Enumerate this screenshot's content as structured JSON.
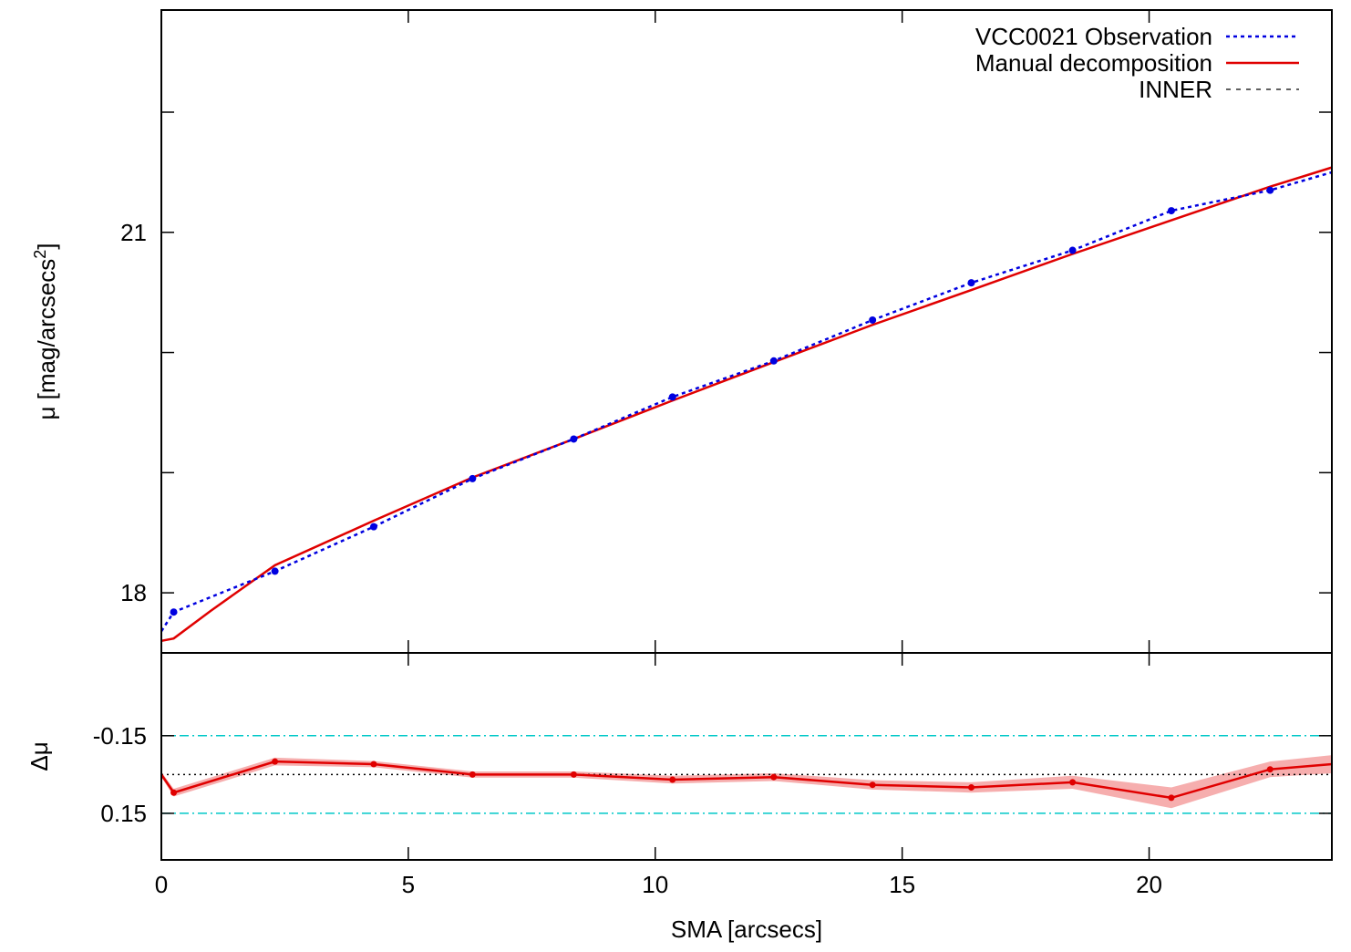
{
  "chart_data": [
    {
      "type": "line",
      "panel": "profile",
      "ylabel": "μ [mag/arcsecs",
      "ylabel_superscript": "2",
      "ylabel_close": "]",
      "xlim": [
        0,
        23.7
      ],
      "ylim": [
        22.85,
        17.5
      ],
      "y_reversed": true,
      "y_ticks": [
        18,
        19,
        20,
        21,
        22
      ],
      "y_tick_labels": [
        "18",
        "",
        "",
        "21",
        ""
      ],
      "legend_position": "top-right",
      "series": [
        {
          "name": "VCC0021 Observation",
          "style": "dotted-with-points",
          "color": "#0000e0",
          "x": [
            0.0,
            0.25,
            2.3,
            4.3,
            6.3,
            8.35,
            10.35,
            12.4,
            14.4,
            16.4,
            18.45,
            20.45,
            22.45,
            23.7
          ],
          "y": [
            17.68,
            17.84,
            18.18,
            18.55,
            18.95,
            19.28,
            19.63,
            19.93,
            20.27,
            20.58,
            20.85,
            21.18,
            21.35,
            21.5
          ]
        },
        {
          "name": "Manual decomposition",
          "style": "solid",
          "color": "#e00000",
          "x": [
            0.0,
            0.25,
            1.0,
            2.3,
            4.3,
            6.3,
            8.35,
            10.35,
            12.4,
            14.4,
            16.4,
            18.45,
            20.45,
            22.45,
            23.7
          ],
          "y": [
            17.6,
            17.62,
            17.85,
            18.23,
            18.6,
            18.96,
            19.28,
            19.6,
            19.92,
            20.23,
            20.52,
            20.82,
            21.1,
            21.38,
            21.54
          ]
        },
        {
          "name": "INNER",
          "style": "dashed",
          "color": "#000000",
          "x": [],
          "y": []
        }
      ]
    },
    {
      "type": "line",
      "panel": "residuals",
      "xlabel": "SMA [arcsecs]",
      "ylabel": "Δμ",
      "xlim": [
        0,
        23.7
      ],
      "ylim": [
        -0.47,
        0.33
      ],
      "x_ticks": [
        0,
        5,
        10,
        15,
        20
      ],
      "x_tick_labels": [
        "0",
        "5",
        "10",
        "15",
        "20"
      ],
      "y_ticks": [
        0.15,
        -0.15
      ],
      "y_tick_labels": [
        "0.15",
        "-0.15"
      ],
      "reference_lines": [
        {
          "y": 0.15,
          "style": "dash-dot",
          "color": "#00c8c8"
        },
        {
          "y": -0.15,
          "style": "dash-dot",
          "color": "#00c8c8"
        },
        {
          "y": 0.0,
          "style": "dotted",
          "color": "#000000"
        }
      ],
      "series": [
        {
          "color": "#e00000",
          "band_color": "#f4a0a0",
          "x": [
            0.0,
            0.25,
            2.3,
            4.3,
            6.3,
            8.35,
            10.35,
            12.4,
            14.4,
            16.4,
            18.45,
            20.45,
            22.45,
            23.7
          ],
          "y": [
            0.0,
            0.07,
            -0.05,
            -0.04,
            0.0,
            0.0,
            0.02,
            0.01,
            0.04,
            0.05,
            0.03,
            0.09,
            -0.02,
            -0.04
          ],
          "err": [
            0.01,
            0.015,
            0.015,
            0.012,
            0.012,
            0.012,
            0.015,
            0.015,
            0.018,
            0.02,
            0.025,
            0.04,
            0.03,
            0.035
          ]
        }
      ]
    }
  ]
}
